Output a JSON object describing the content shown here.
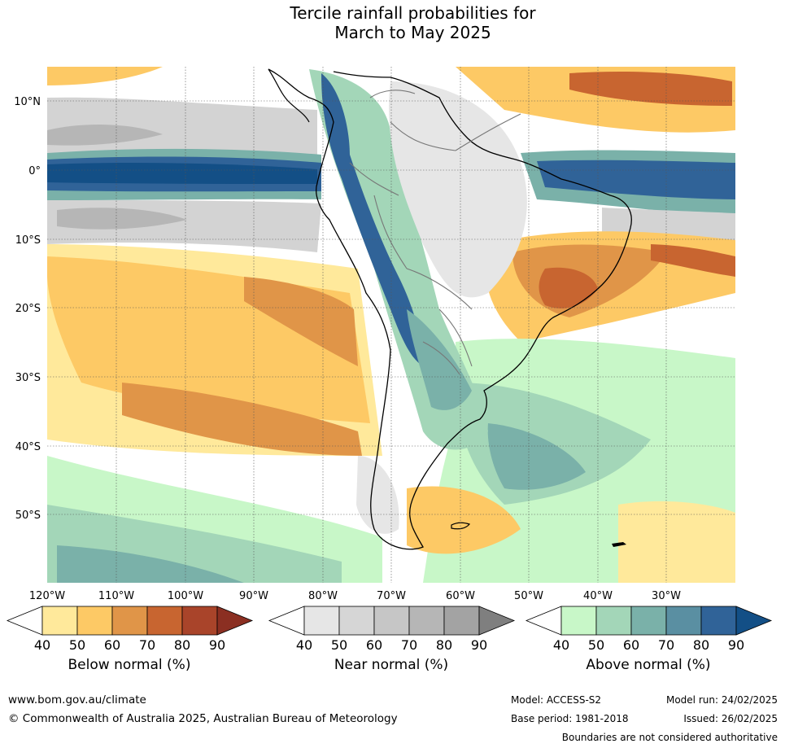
{
  "title_line1": "Tercile rainfall probabilities for",
  "title_line2": "March to May 2025",
  "lat_labels": [
    "10°N",
    "0°",
    "10°S",
    "20°S",
    "30°S",
    "40°S",
    "50°S"
  ],
  "lon_labels": [
    "120°W",
    "110°W",
    "100°W",
    "90°W",
    "80°W",
    "70°W",
    "60°W",
    "50°W",
    "40°W",
    "30°W"
  ],
  "colorbars": [
    {
      "label": "Below normal (%)",
      "ticks": [
        "40",
        "50",
        "60",
        "70",
        "80",
        "90"
      ],
      "colors": [
        "#ffffff",
        "#ffe99b",
        "#fdc965",
        "#e09548",
        "#c86530",
        "#a9442a",
        "#8b2f22"
      ]
    },
    {
      "label": "Near normal (%)",
      "ticks": [
        "40",
        "50",
        "60",
        "70",
        "80",
        "90"
      ],
      "colors": [
        "#ffffff",
        "#e6e6e6",
        "#d6d6d6",
        "#c6c6c6",
        "#b6b6b6",
        "#a3a3a3",
        "#7f7f7f"
      ]
    },
    {
      "label": "Above normal (%)",
      "ticks": [
        "40",
        "50",
        "60",
        "70",
        "80",
        "90"
      ],
      "colors": [
        "#ffffff",
        "#c8f7c8",
        "#a3d6b8",
        "#7ab1a9",
        "#5a8fa2",
        "#306398",
        "#134f86"
      ]
    }
  ],
  "footer": {
    "website": "www.bom.gov.au/climate",
    "copyright": "© Commonwealth of Australia 2025, Australian Bureau of Meteorology",
    "model": "Model: ACCESS-S2",
    "base_period": "Base period: 1981-2018",
    "model_run": "Model run: 24/02/2025",
    "issued": "Issued: 26/02/2025",
    "disclaimer": "Boundaries are not considered authoritative"
  }
}
